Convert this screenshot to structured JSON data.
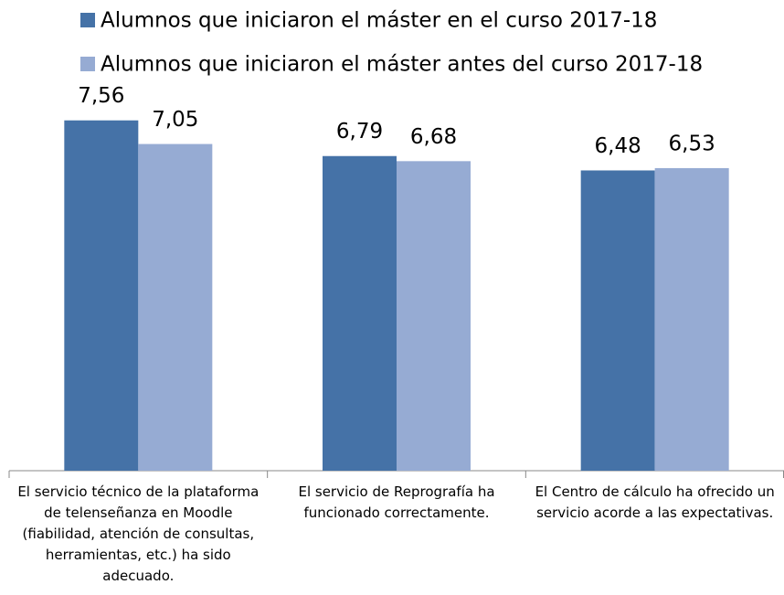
{
  "chart_data": {
    "type": "bar",
    "categories": [
      "El servicio técnico de la plataforma de telenseñanza en Moodle (fiabilidad, atención de consultas, herramientas, etc.) ha sido adecuado.",
      "El servicio de Reprografía ha funcionado correctamente.",
      "El Centro de cálculo ha ofrecido un servicio acorde a las expectativas."
    ],
    "series": [
      {
        "name": "Alumnos que iniciaron el máster en el curso 2017-18",
        "color": "#4572a7",
        "values": [
          7.56,
          6.79,
          6.48
        ],
        "value_labels": [
          "7,56",
          "6,79",
          "6,48"
        ]
      },
      {
        "name": "Alumnos que iniciaron el máster antes del curso 2017-18",
        "color": "#96abd3",
        "values": [
          7.05,
          6.68,
          6.53
        ],
        "value_labels": [
          "7,05",
          "6,68",
          "6,53"
        ]
      }
    ]
  }
}
